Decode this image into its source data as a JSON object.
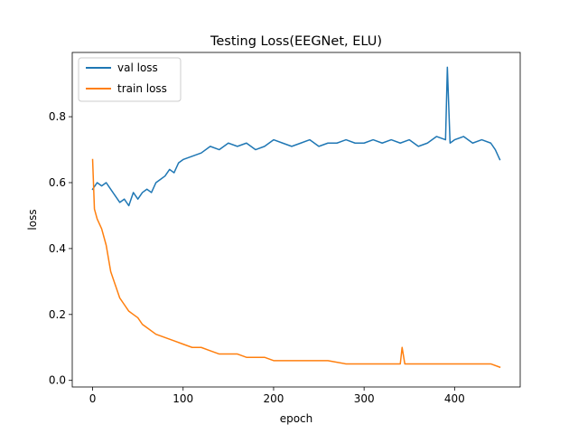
{
  "chart_data": {
    "type": "line",
    "title": "Testing Loss(EEGNet, ELU)",
    "xlabel": "epoch",
    "ylabel": "loss",
    "xlim": [
      -22.5,
      472.5
    ],
    "ylim": [
      -0.02,
      0.995
    ],
    "xticks": [
      0,
      100,
      200,
      300,
      400
    ],
    "yticks": [
      0.0,
      0.2,
      0.4,
      0.6,
      0.8
    ],
    "xtick_labels": [
      "0",
      "100",
      "200",
      "300",
      "400"
    ],
    "ytick_labels": [
      "0.0",
      "0.2",
      "0.4",
      "0.6",
      "0.8"
    ],
    "grid": false,
    "legend_position": "top-left",
    "series": [
      {
        "name": "val loss",
        "color": "#1f77b4",
        "x": [
          0,
          5,
          10,
          15,
          20,
          25,
          30,
          35,
          40,
          45,
          50,
          55,
          60,
          65,
          70,
          75,
          80,
          85,
          90,
          95,
          100,
          110,
          120,
          130,
          140,
          150,
          160,
          170,
          180,
          190,
          200,
          210,
          220,
          230,
          240,
          250,
          260,
          270,
          280,
          290,
          300,
          310,
          320,
          330,
          340,
          350,
          360,
          370,
          380,
          390,
          392,
          395,
          400,
          410,
          420,
          430,
          440,
          445,
          450
        ],
        "y": [
          0.58,
          0.6,
          0.59,
          0.6,
          0.58,
          0.56,
          0.54,
          0.55,
          0.53,
          0.57,
          0.55,
          0.57,
          0.58,
          0.57,
          0.6,
          0.61,
          0.62,
          0.64,
          0.63,
          0.66,
          0.67,
          0.68,
          0.69,
          0.71,
          0.7,
          0.72,
          0.71,
          0.72,
          0.7,
          0.71,
          0.73,
          0.72,
          0.71,
          0.72,
          0.73,
          0.71,
          0.72,
          0.72,
          0.73,
          0.72,
          0.72,
          0.73,
          0.72,
          0.73,
          0.72,
          0.73,
          0.71,
          0.72,
          0.74,
          0.73,
          0.95,
          0.72,
          0.73,
          0.74,
          0.72,
          0.73,
          0.72,
          0.7,
          0.67
        ]
      },
      {
        "name": "train loss",
        "color": "#ff7f0e",
        "x": [
          0,
          2,
          5,
          10,
          15,
          20,
          25,
          30,
          35,
          40,
          45,
          50,
          55,
          60,
          70,
          80,
          90,
          100,
          110,
          120,
          130,
          140,
          150,
          160,
          170,
          180,
          190,
          200,
          220,
          240,
          260,
          280,
          300,
          320,
          340,
          342,
          345,
          360,
          380,
          400,
          420,
          440,
          450
        ],
        "y": [
          0.67,
          0.52,
          0.49,
          0.46,
          0.41,
          0.33,
          0.29,
          0.25,
          0.23,
          0.21,
          0.2,
          0.19,
          0.17,
          0.16,
          0.14,
          0.13,
          0.12,
          0.11,
          0.1,
          0.1,
          0.09,
          0.08,
          0.08,
          0.08,
          0.07,
          0.07,
          0.07,
          0.06,
          0.06,
          0.06,
          0.06,
          0.05,
          0.05,
          0.05,
          0.05,
          0.1,
          0.05,
          0.05,
          0.05,
          0.05,
          0.05,
          0.05,
          0.04
        ]
      }
    ]
  }
}
